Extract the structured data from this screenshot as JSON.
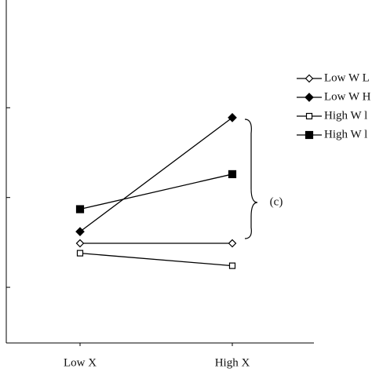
{
  "chart_data": {
    "type": "line",
    "annotation": "(c)",
    "categories": [
      "Low X",
      "High X"
    ],
    "series": [
      {
        "name": "Low W L",
        "color": "#000000",
        "marker": "diamond-open",
        "values": [
          1.49,
          1.49
        ]
      },
      {
        "name": "Low W H",
        "color": "#000000",
        "marker": "diamond-filled",
        "values": [
          1.62,
          2.89
        ]
      },
      {
        "name": "High W l",
        "color": "#000000",
        "marker": "square-open",
        "values": [
          1.38,
          1.24
        ]
      },
      {
        "name": "High W l",
        "color": "#000000",
        "marker": "square-filled",
        "values": [
          1.87,
          2.26
        ]
      }
    ],
    "ylim": [
      0.38,
      4.2
    ],
    "yticks": [
      1,
      2,
      3
    ],
    "legend": "right"
  }
}
